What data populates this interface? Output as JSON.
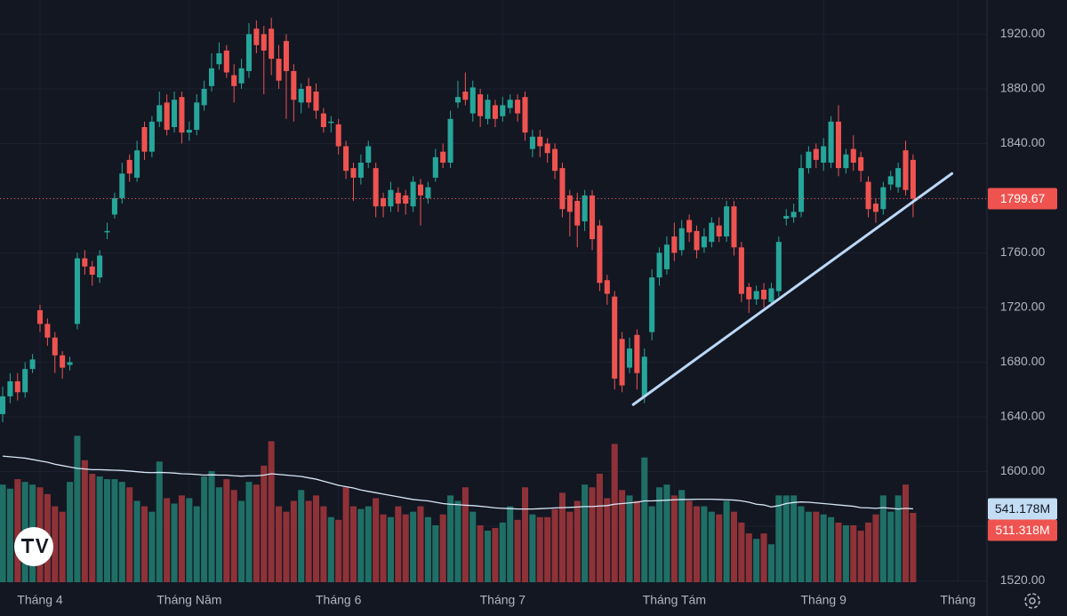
{
  "chart_data": {
    "type": "candlestick",
    "xlim": [
      -0.36,
      131.9
    ],
    "xticks": [
      {
        "value": 5,
        "label": "Tháng 4"
      },
      {
        "value": 25,
        "label": "Tháng Năm"
      },
      {
        "value": 45,
        "label": "Tháng 6"
      },
      {
        "value": 67,
        "label": "Tháng 7"
      },
      {
        "value": 90,
        "label": "Tháng Tám"
      },
      {
        "value": 110,
        "label": "Tháng 9"
      },
      {
        "value": 128,
        "label": "Tháng"
      }
    ],
    "ylim": [
      1519,
      1945
    ],
    "yticks": [
      {
        "value": 1520,
        "label": "1520.00"
      },
      {
        "value": 1560,
        "label": "1560.00"
      },
      {
        "value": 1600,
        "label": "1600.00"
      },
      {
        "value": 1640,
        "label": "1640.00"
      },
      {
        "value": 1680,
        "label": "1680.00"
      },
      {
        "value": 1720,
        "label": "1720.00"
      },
      {
        "value": 1760,
        "label": "1760.00"
      },
      {
        "value": 1800,
        "label": "1800.00"
      },
      {
        "value": 1840,
        "label": "1840.00"
      },
      {
        "value": 1880,
        "label": "1880.00"
      },
      {
        "value": 1920,
        "label": "1920.00"
      }
    ],
    "grid": true,
    "up_color": "#26a69a",
    "down_color": "#ef5350",
    "open": [
      1642,
      1655,
      1666,
      1658,
      1675,
      1718,
      1708,
      1698,
      1685,
      1678,
      1708,
      1756,
      1750,
      1742,
      1775,
      1788,
      1800,
      1828,
      1815,
      1852,
      1834,
      1856,
      1870,
      1852,
      1874,
      1848,
      1850,
      1868,
      1882,
      1898,
      1908,
      1890,
      1884,
      1893,
      1924,
      1920,
      1924,
      1902,
      1915,
      1893,
      1870,
      1882,
      1878,
      1862,
      1855,
      1854,
      1838,
      1822,
      1815,
      1826,
      1822,
      1800,
      1794,
      1804,
      1802,
      1794,
      1810,
      1800,
      1815,
      1834,
      1826,
      1870,
      1878,
      1862,
      1876,
      1858,
      1868,
      1860,
      1866,
      1872,
      1874,
      1836,
      1845,
      1840,
      1836,
      1822,
      1802,
      1798,
      1783,
      1802,
      1780,
      1740,
      1728,
      1697,
      1676,
      1700,
      1655,
      1702,
      1742,
      1748,
      1772,
      1762,
      1784,
      1776,
      1764,
      1768,
      1780,
      1772,
      1794,
      1764,
      1735,
      1726,
      1733,
      1724,
      1732,
      1785,
      1786,
      1790,
      1822,
      1836,
      1826,
      1826,
      1856,
      1822,
      1836,
      1830,
      1812,
      1796,
      1792,
      1810,
      1808,
      1835,
      1828
    ],
    "high": [
      1662,
      1672,
      1672,
      1680,
      1686,
      1722,
      1712,
      1702,
      1688,
      1684,
      1760,
      1762,
      1754,
      1762,
      1782,
      1804,
      1826,
      1832,
      1842,
      1856,
      1860,
      1878,
      1876,
      1878,
      1878,
      1856,
      1876,
      1886,
      1906,
      1914,
      1912,
      1898,
      1902,
      1928,
      1930,
      1926,
      1932,
      1912,
      1920,
      1898,
      1884,
      1888,
      1884,
      1866,
      1860,
      1858,
      1842,
      1826,
      1832,
      1842,
      1826,
      1804,
      1812,
      1808,
      1806,
      1816,
      1814,
      1812,
      1836,
      1840,
      1864,
      1886,
      1892,
      1886,
      1880,
      1876,
      1872,
      1874,
      1876,
      1876,
      1878,
      1850,
      1850,
      1844,
      1840,
      1826,
      1806,
      1804,
      1806,
      1806,
      1784,
      1744,
      1732,
      1702,
      1698,
      1704,
      1690,
      1748,
      1764,
      1772,
      1782,
      1784,
      1788,
      1780,
      1778,
      1786,
      1786,
      1798,
      1798,
      1768,
      1738,
      1736,
      1738,
      1738,
      1772,
      1792,
      1796,
      1832,
      1838,
      1840,
      1844,
      1860,
      1868,
      1836,
      1846,
      1834,
      1816,
      1800,
      1812,
      1820,
      1826,
      1842,
      1832
    ],
    "low": [
      1636,
      1650,
      1652,
      1654,
      1672,
      1702,
      1692,
      1672,
      1668,
      1674,
      1704,
      1744,
      1736,
      1738,
      1770,
      1785,
      1796,
      1812,
      1812,
      1828,
      1830,
      1852,
      1846,
      1848,
      1840,
      1842,
      1846,
      1864,
      1878,
      1894,
      1888,
      1870,
      1880,
      1888,
      1906,
      1876,
      1890,
      1880,
      1858,
      1856,
      1862,
      1866,
      1858,
      1848,
      1848,
      1832,
      1814,
      1798,
      1810,
      1822,
      1786,
      1786,
      1790,
      1790,
      1788,
      1790,
      1780,
      1796,
      1812,
      1822,
      1822,
      1866,
      1868,
      1856,
      1852,
      1854,
      1852,
      1856,
      1862,
      1856,
      1842,
      1830,
      1830,
      1826,
      1814,
      1786,
      1772,
      1764,
      1776,
      1762,
      1732,
      1722,
      1660,
      1658,
      1672,
      1660,
      1650,
      1696,
      1736,
      1744,
      1754,
      1758,
      1768,
      1756,
      1760,
      1764,
      1768,
      1768,
      1758,
      1724,
      1716,
      1722,
      1720,
      1722,
      1728,
      1780,
      1782,
      1786,
      1818,
      1822,
      1820,
      1822,
      1816,
      1818,
      1820,
      1812,
      1786,
      1782,
      1788,
      1806,
      1804,
      1802,
      1786
    ],
    "close": [
      1655,
      1666,
      1658,
      1675,
      1682,
      1708,
      1698,
      1685,
      1676,
      1680,
      1756,
      1750,
      1744,
      1758,
      1776,
      1800,
      1818,
      1818,
      1835,
      1834,
      1856,
      1868,
      1850,
      1872,
      1848,
      1850,
      1870,
      1880,
      1895,
      1906,
      1892,
      1882,
      1895,
      1920,
      1912,
      1908,
      1902,
      1886,
      1893,
      1872,
      1880,
      1870,
      1864,
      1852,
      1856,
      1838,
      1820,
      1815,
      1826,
      1838,
      1794,
      1794,
      1806,
      1796,
      1796,
      1812,
      1802,
      1808,
      1830,
      1826,
      1858,
      1874,
      1872,
      1881,
      1860,
      1872,
      1858,
      1868,
      1872,
      1862,
      1848,
      1845,
      1838,
      1833,
      1820,
      1792,
      1790,
      1780,
      1802,
      1770,
      1738,
      1730,
      1668,
      1663,
      1690,
      1672,
      1684,
      1742,
      1760,
      1766,
      1760,
      1778,
      1775,
      1762,
      1772,
      1782,
      1772,
      1794,
      1764,
      1730,
      1726,
      1732,
      1726,
      1734,
      1768,
      1787,
      1790,
      1822,
      1834,
      1828,
      1838,
      1856,
      1822,
      1832,
      1826,
      1820,
      1792,
      1790,
      1808,
      1816,
      1822,
      1806,
      1799.67
    ],
    "volume": {
      "values": [
        720,
        690,
        760,
        740,
        720,
        700,
        650,
        560,
        520,
        740,
        1080,
        900,
        800,
        780,
        760,
        760,
        740,
        700,
        600,
        560,
        520,
        890,
        620,
        580,
        640,
        620,
        560,
        780,
        820,
        700,
        760,
        680,
        600,
        740,
        720,
        860,
        1040,
        560,
        520,
        600,
        680,
        600,
        640,
        560,
        480,
        460,
        700,
        560,
        540,
        560,
        620,
        500,
        480,
        560,
        500,
        520,
        560,
        480,
        420,
        500,
        640,
        600,
        700,
        520,
        420,
        380,
        400,
        440,
        560,
        460,
        700,
        500,
        480,
        480,
        540,
        660,
        520,
        600,
        720,
        700,
        800,
        620,
        1020,
        680,
        640,
        600,
        920,
        560,
        700,
        720,
        640,
        680,
        600,
        560,
        560,
        520,
        500,
        600,
        520,
        440,
        360,
        320,
        360,
        280,
        640,
        640,
        640,
        560,
        520,
        520,
        500,
        480,
        440,
        420,
        420,
        380,
        440,
        500,
        640,
        520,
        640,
        720,
        511.318
      ],
      "last_label": "511.318M"
    },
    "volume_ylim": [
      0,
      4294
    ],
    "volume_up_color": "#1f6f66",
    "volume_down_color": "#8e3238",
    "volume_ma": {
      "color": "#d6e6f5",
      "values": [
        930,
        925,
        920,
        915,
        905,
        895,
        885,
        870,
        860,
        850,
        840,
        835,
        830,
        830,
        828,
        826,
        824,
        820,
        815,
        810,
        808,
        810,
        808,
        805,
        800,
        798,
        795,
        790,
        792,
        790,
        790,
        785,
        782,
        785,
        785,
        790,
        800,
        795,
        790,
        785,
        780,
        770,
        760,
        745,
        730,
        715,
        705,
        695,
        680,
        670,
        660,
        650,
        640,
        630,
        620,
        610,
        605,
        600,
        590,
        580,
        575,
        572,
        568,
        565,
        560,
        555,
        548,
        545,
        543,
        540,
        540,
        540,
        542,
        545,
        548,
        550,
        552,
        555,
        558,
        558,
        562,
        565,
        575,
        580,
        585,
        590,
        600,
        600,
        602,
        605,
        608,
        610,
        610,
        612,
        612,
        612,
        610,
        608,
        606,
        600,
        590,
        575,
        570,
        555,
        565,
        580,
        588,
        592,
        590,
        585,
        580,
        575,
        570,
        565,
        560,
        550,
        548,
        545,
        550,
        545,
        540,
        545,
        541.178
      ],
      "last_label": "541.178M"
    },
    "trendline": {
      "color": "#bcd8f7",
      "x": [
        84.5,
        127.2
      ],
      "y": [
        1649,
        1818
      ]
    }
  }
}
